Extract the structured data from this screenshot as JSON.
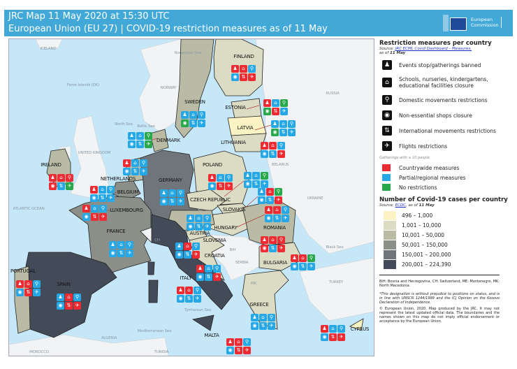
{
  "header": {
    "line1": "JRC Map 11 May 2020 at 15:30 UTC",
    "line2": "European Union (EU 27) | COVID-19 restriction measures as of 11 May",
    "logo_text": "European Commission"
  },
  "colors": {
    "header": "#41a8d8",
    "red": "#ee2a32",
    "blue": "#27a8e6",
    "green": "#27a84a",
    "sea": "#c6e7f8",
    "nonEU": "#f2f3f4"
  },
  "legend": {
    "measures_title": "Restriction measures per country",
    "measures_source_prefix": "Source: ",
    "measures_source_link": "JRC ECML Covid Dashboard – Measures,",
    "measures_asof": "as of ",
    "measures_date": "11 May",
    "measures": [
      {
        "icon": "events-icon",
        "label": "Events stop/gatherings banned"
      },
      {
        "icon": "school-icon",
        "label": "Schools, nurseries, kindergartens, educational facilities closure"
      },
      {
        "icon": "walking-icon",
        "label": "Domestic movements restrictions"
      },
      {
        "icon": "shop-icon",
        "label": "Non-essential shops closure"
      },
      {
        "icon": "arrows-icon",
        "label": "International movements restrictions"
      },
      {
        "icon": "plane-icon",
        "label": "Flights restrictions"
      }
    ],
    "gathering_note": "Gatherings with ≥ 10 people",
    "status": [
      {
        "code": "r",
        "label": "Countrywide measures",
        "color": "#ee2a32"
      },
      {
        "code": "b",
        "label": "Partial/regional measures",
        "color": "#27a8e6"
      },
      {
        "code": "g",
        "label": "No restrictions",
        "color": "#27a84a"
      }
    ],
    "cases_title": "Number of Covid-19 cases per country",
    "cases_source_prefix": "Source: ",
    "cases_source_link": "ECDC",
    "cases_asof": ", as of ",
    "cases_date": "11 May",
    "bins": [
      {
        "label": "496 – 1,000",
        "color": "#fbf3c4"
      },
      {
        "label": "1,001 – 10,000",
        "color": "#dcdcc4"
      },
      {
        "label": "10,001 – 50,000",
        "color": "#b9bba5"
      },
      {
        "label": "50,001 – 150,000",
        "color": "#8b8f88"
      },
      {
        "label": "150,001 – 200,000",
        "color": "#6f757b"
      },
      {
        "label": "200,001 – 224,390",
        "color": "#444b58"
      }
    ],
    "abbrev": "BiH: Bosnia and Herzegovina, CH: Switzerland, ME: Montenegro, MK: North Macedonia.",
    "kosovo": "*This designation is without prejudice to positions on status, and is in line with UNSCR 1244/1999 and the ICJ Opinion on the Kosovo Declaration of Independence.",
    "copyright": "© European Union, 2020. Map produced by the JRC. It may not represent the latest updated official data. The boundaries and the names shown on this map do not imply official endorsement or acceptance by the European Union."
  },
  "icon_glyphs": [
    "♟",
    "⌂",
    "⚲",
    "◉",
    "⇅",
    "✈"
  ],
  "countries": [
    {
      "name": "FINLAND",
      "m": "rrbbrr"
    },
    {
      "name": "SWEDEN",
      "m": "bbbgbb"
    },
    {
      "name": "ESTONIA",
      "m": "rbggrb"
    },
    {
      "name": "LATVIA",
      "m": "bbbgbb"
    },
    {
      "name": "LITHUANIA",
      "m": "rrbbbr"
    },
    {
      "name": "DENMARK",
      "m": "bbgbbg"
    },
    {
      "name": "IRELAND",
      "m": "rrrrbg"
    },
    {
      "name": "NETHERLANDS",
      "m": "rbbbbb"
    },
    {
      "name": "BELGIUM",
      "m": "rbbbbb"
    },
    {
      "name": "LUXEMBOURG",
      "m": "rbbbrr"
    },
    {
      "name": "GERMANY",
      "m": "bbbbbb"
    },
    {
      "name": "POLAND",
      "m": "rbbbrr"
    },
    {
      "name": "CZECH REPUBLIC",
      "m": "bbgbbb"
    },
    {
      "name": "SLOVAKIA",
      "m": "brgbbr"
    },
    {
      "name": "HUNGARY",
      "m": "rrbbbb"
    },
    {
      "name": "FRANCE",
      "m": "bbbbbb"
    },
    {
      "name": "AUSTRIA",
      "m": "bbbbbb"
    },
    {
      "name": "SLOVENIA",
      "m": "brbbbr"
    },
    {
      "name": "CROATIA",
      "m": "rbbbbr"
    },
    {
      "name": "ITALY",
      "m": "rrbbbb"
    },
    {
      "name": "SPAIN",
      "m": "brbbrr"
    },
    {
      "name": "PORTUGAL",
      "m": "rrbbrb"
    },
    {
      "name": "ROMANIA",
      "m": "rrrrbr"
    },
    {
      "name": "BULGARIA",
      "m": "rrgbbb"
    },
    {
      "name": "GREECE",
      "m": "bbbbbb"
    },
    {
      "name": "MALTA",
      "m": "rrbbrr"
    },
    {
      "name": "CYPRUS",
      "m": "rbbbrr"
    }
  ],
  "other_labels": [
    "ICELAND",
    "Norwegian Sea",
    "Faroe Islands (DK)",
    "NORWAY",
    "North Sea",
    "UNITED KINGDOM",
    "RUSSIA",
    "BELARUS",
    "UKRAINE",
    "ATLANTIC OCEAN",
    "CH",
    "Baltic Sea",
    "Black Sea",
    "TURKEY",
    "ALGERIA",
    "MOROCCO",
    "TUNISIA",
    "Mediterranean Sea",
    "Tyrrhenian Sea",
    "BiH",
    "SERBIA",
    "MK"
  ]
}
